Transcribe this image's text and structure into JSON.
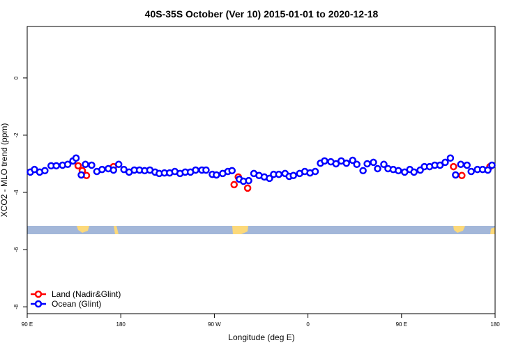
{
  "chart_data": {
    "type": "scatter",
    "title": "40S-35S October (Ver 10)   2015-01-01 to 2020-12-18",
    "x_label": "Longitude (deg E)",
    "y_label": "XCO2 - MLO trend (ppm)",
    "xlim": [
      90,
      540
    ],
    "ylim": [
      -8.24,
      1.8
    ],
    "xticks": [
      {
        "value": 90,
        "label": "90 E"
      },
      180,
      {
        "value": 270,
        "label": "90 W"
      },
      {
        "value": 360,
        "label": "0"
      },
      {
        "value": 450,
        "label": "90 E"
      },
      {
        "value": 540,
        "label": "180"
      }
    ],
    "yticks": [
      0,
      -2,
      -4,
      -6,
      -8
    ],
    "legend": "bottom-left",
    "series": [
      {
        "name": "Land (Nadir&Glint)",
        "color": "#ff0000",
        "x": [
          139,
          143,
          147,
          173,
          289,
          293,
          302,
          500,
          508,
          535
        ],
        "values": [
          -3.07,
          -3.24,
          -3.41,
          -3.1,
          -3.73,
          -3.46,
          -3.85,
          -3.1,
          -3.41,
          -3.1
        ]
      },
      {
        "name": "Ocean (Glint)",
        "color": "#0000ff",
        "x": [
          93,
          97,
          102,
          107,
          113,
          118,
          124,
          129,
          134,
          137,
          142,
          146,
          152,
          157,
          162,
          168,
          173,
          178,
          183,
          188,
          193,
          198,
          203,
          208,
          213,
          217,
          222,
          227,
          232,
          237,
          242,
          247,
          252,
          258,
          262,
          268,
          272,
          278,
          283,
          287,
          294,
          298,
          303,
          308,
          313,
          318,
          323,
          327,
          332,
          338,
          342,
          346,
          352,
          357,
          362,
          367,
          372,
          376,
          382,
          387,
          392,
          397,
          403,
          407,
          413,
          417,
          423,
          427,
          433,
          437,
          442,
          447,
          453,
          458,
          462,
          468,
          472,
          477,
          482,
          487,
          492,
          497,
          502,
          507,
          513,
          517,
          523,
          528,
          533,
          537
        ],
        "values": [
          -3.29,
          -3.2,
          -3.29,
          -3.24,
          -3.07,
          -3.07,
          -3.05,
          -3.02,
          -2.9,
          -2.8,
          -3.39,
          -3.02,
          -3.05,
          -3.27,
          -3.2,
          -3.17,
          -3.22,
          -3.02,
          -3.2,
          -3.29,
          -3.22,
          -3.22,
          -3.24,
          -3.22,
          -3.29,
          -3.34,
          -3.32,
          -3.32,
          -3.27,
          -3.34,
          -3.29,
          -3.29,
          -3.22,
          -3.22,
          -3.22,
          -3.37,
          -3.39,
          -3.34,
          -3.27,
          -3.24,
          -3.54,
          -3.61,
          -3.59,
          -3.34,
          -3.41,
          -3.46,
          -3.51,
          -3.37,
          -3.37,
          -3.34,
          -3.44,
          -3.41,
          -3.34,
          -3.27,
          -3.32,
          -3.27,
          -2.98,
          -2.9,
          -2.93,
          -3.0,
          -2.9,
          -2.98,
          -2.88,
          -3.02,
          -3.24,
          -3.0,
          -2.95,
          -3.17,
          -3.02,
          -3.17,
          -3.2,
          -3.24,
          -3.29,
          -3.2,
          -3.29,
          -3.22,
          -3.1,
          -3.1,
          -3.05,
          -3.05,
          -2.95,
          -2.8,
          -3.39,
          -3.02,
          -3.05,
          -3.27,
          -3.2,
          -3.2,
          -3.22,
          -3.05
        ]
      }
    ]
  }
}
